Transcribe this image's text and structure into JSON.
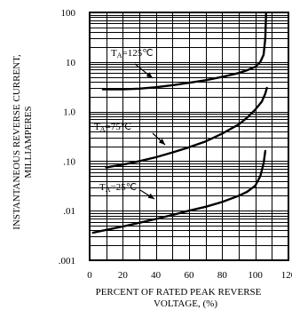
{
  "chart_data": {
    "type": "line",
    "xlabel": [
      "PERCENT OF RATED PEAK REVERSE",
      "VOLTAGE, (%)"
    ],
    "ylabel": [
      "INSTANTANEOUS REVERSE CURRENT,",
      "MILLIAMPERES"
    ],
    "xlim": [
      0,
      120
    ],
    "ylim": [
      0.001,
      100
    ],
    "yscale": "log",
    "grid": true,
    "x_ticks": [
      "0",
      "20",
      "40",
      "60",
      "80",
      "100",
      "120"
    ],
    "x_tick_values": [
      0,
      20,
      40,
      60,
      80,
      100,
      120
    ],
    "y_ticks": [
      ".001",
      ".01",
      ".10",
      "1.0",
      "10",
      "100"
    ],
    "y_tick_values": [
      0.001,
      0.01,
      0.1,
      1,
      10,
      100
    ],
    "series": [
      {
        "name": "TA=125℃",
        "label_main": "T",
        "label_sub": "A",
        "label_rest": "=125℃",
        "x": [
          8,
          20,
          30,
          40,
          50,
          60,
          70,
          80,
          90,
          95,
          100,
          103,
          105,
          106,
          106.5
        ],
        "y": [
          2.8,
          2.8,
          2.9,
          3.1,
          3.4,
          3.8,
          4.3,
          5.0,
          6.0,
          6.8,
          8.0,
          10,
          14,
          30,
          95
        ]
      },
      {
        "name": "TA=75℃",
        "label_main": "T",
        "label_sub": "A",
        "label_rest": "=75℃",
        "x": [
          10,
          20,
          30,
          40,
          50,
          60,
          70,
          80,
          90,
          95,
          100,
          104,
          106,
          107
        ],
        "y": [
          0.075,
          0.085,
          0.1,
          0.12,
          0.15,
          0.19,
          0.25,
          0.36,
          0.55,
          0.75,
          1.1,
          1.6,
          2.3,
          3.0
        ]
      },
      {
        "name": "TA=25℃",
        "label_main": "T",
        "label_sub": "A",
        "label_rest": "=25℃",
        "x": [
          2,
          10,
          20,
          30,
          40,
          50,
          60,
          70,
          80,
          90,
          95,
          100,
          103,
          105,
          106
        ],
        "y": [
          0.0036,
          0.0041,
          0.0048,
          0.0057,
          0.0068,
          0.0082,
          0.01,
          0.012,
          0.015,
          0.02,
          0.024,
          0.032,
          0.05,
          0.09,
          0.16
        ]
      }
    ]
  }
}
